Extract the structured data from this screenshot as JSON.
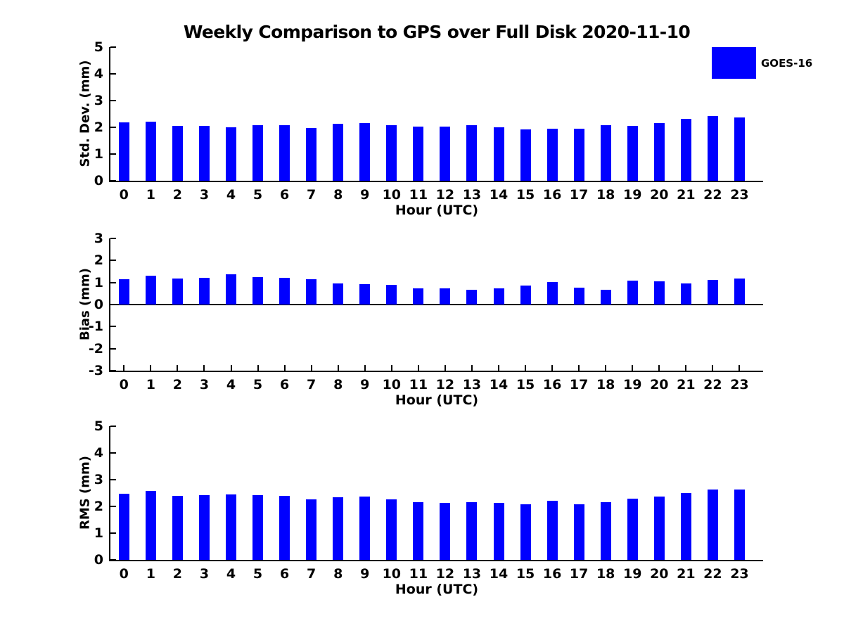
{
  "title": "Weekly Comparison to GPS over Full Disk 2020-11-10",
  "legend": {
    "label": "GOES-16",
    "color": "#0000FF"
  },
  "chart_data": [
    {
      "type": "bar",
      "ylabel": "Std. Dev. (mm)",
      "xlabel": "Hour (UTC)",
      "categories": [
        0,
        1,
        2,
        3,
        4,
        5,
        6,
        7,
        8,
        9,
        10,
        11,
        12,
        13,
        14,
        15,
        16,
        17,
        18,
        19,
        20,
        21,
        22,
        23
      ],
      "values": [
        2.19,
        2.22,
        2.06,
        2.06,
        2.01,
        2.09,
        2.08,
        1.98,
        2.14,
        2.17,
        2.09,
        2.03,
        2.02,
        2.07,
        2.01,
        1.93,
        1.96,
        1.96,
        2.09,
        2.04,
        2.15,
        2.32,
        2.41,
        2.36
      ],
      "series_name": "GOES-16",
      "bar_color": "#0000FF",
      "ylim": [
        0,
        5
      ],
      "yticks": [
        0,
        1,
        2,
        3,
        4,
        5
      ],
      "grid": false,
      "legend_position": "upper-right-outside"
    },
    {
      "type": "bar",
      "ylabel": "Bias (mm)",
      "xlabel": "Hour (UTC)",
      "categories": [
        0,
        1,
        2,
        3,
        4,
        5,
        6,
        7,
        8,
        9,
        10,
        11,
        12,
        13,
        14,
        15,
        16,
        17,
        18,
        19,
        20,
        21,
        22,
        23
      ],
      "values": [
        1.15,
        1.31,
        1.19,
        1.22,
        1.38,
        1.26,
        1.21,
        1.14,
        0.96,
        0.92,
        0.88,
        0.73,
        0.74,
        0.68,
        0.73,
        0.86,
        1.01,
        0.78,
        0.68,
        1.1,
        1.04,
        0.95,
        1.12,
        1.18
      ],
      "series_name": "GOES-16",
      "bar_color": "#0000FF",
      "ylim": [
        -3,
        3
      ],
      "yticks": [
        -3,
        -2,
        -1,
        0,
        1,
        2,
        3
      ],
      "baseline": 0,
      "grid": false
    },
    {
      "type": "bar",
      "ylabel": "RMS (mm)",
      "xlabel": "Hour (UTC)",
      "categories": [
        0,
        1,
        2,
        3,
        4,
        5,
        6,
        7,
        8,
        9,
        10,
        11,
        12,
        13,
        14,
        15,
        16,
        17,
        18,
        19,
        20,
        21,
        22,
        23
      ],
      "values": [
        2.47,
        2.57,
        2.4,
        2.42,
        2.44,
        2.42,
        2.39,
        2.26,
        2.34,
        2.36,
        2.27,
        2.16,
        2.13,
        2.15,
        2.12,
        2.09,
        2.21,
        2.09,
        2.17,
        2.3,
        2.38,
        2.5,
        2.64,
        2.62
      ],
      "series_name": "GOES-16",
      "bar_color": "#0000FF",
      "ylim": [
        0,
        5
      ],
      "yticks": [
        0,
        1,
        2,
        3,
        4,
        5
      ],
      "grid": false
    }
  ]
}
